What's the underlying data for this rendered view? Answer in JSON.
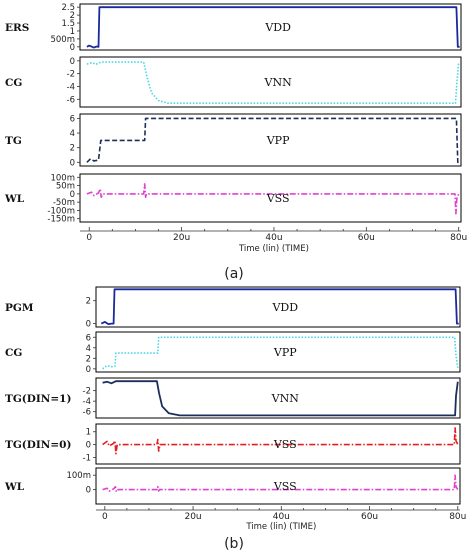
{
  "figure": {
    "captions": [
      "(a)",
      "(b)"
    ],
    "colors": {
      "dark_blue": "#1a2a9c",
      "navy": "#1c2f5c",
      "cyan": "#4fd8e6",
      "magenta": "#e040d0",
      "red": "#e02020",
      "frame": "#000000"
    }
  },
  "chart_data": [
    {
      "type": "line",
      "caption": "(a)",
      "xlabel": "Time (lin) (TIME)",
      "x_ticks": [
        "0",
        "20u",
        "40u",
        "60u",
        "80u"
      ],
      "xlim": [
        -2,
        80.5
      ],
      "panels": [
        {
          "row_label": "ERS",
          "signal_label": "VDD",
          "color": "#1a2a9c",
          "style": "solid",
          "ylim": [
            -0.2,
            2.7
          ],
          "y_ticks": [
            {
              "v": 2.5,
              "t": "2.5"
            },
            {
              "v": 2.0,
              "t": "2"
            },
            {
              "v": 1.5,
              "t": "1.5"
            },
            {
              "v": 1.0,
              "t": "1"
            },
            {
              "v": 0.5,
              "t": "500m"
            },
            {
              "v": 0,
              "t": "0"
            }
          ],
          "points": [
            [
              -0.5,
              0
            ],
            [
              0,
              0.08
            ],
            [
              1,
              -0.05
            ],
            [
              1.6,
              0.02
            ],
            [
              2,
              0
            ],
            [
              2.2,
              2.5
            ],
            [
              79.5,
              2.5
            ],
            [
              79.8,
              0
            ],
            [
              80.2,
              0
            ]
          ]
        },
        {
          "row_label": "CG",
          "signal_label": "VNN",
          "color": "#4fd8e6",
          "style": "dotted",
          "ylim": [
            -7.2,
            0.6
          ],
          "y_ticks": [
            {
              "v": 0,
              "t": "0"
            },
            {
              "v": -2,
              "t": "-2"
            },
            {
              "v": -4,
              "t": "-4"
            },
            {
              "v": -6,
              "t": "-6"
            }
          ],
          "points": [
            [
              -0.5,
              -0.5
            ],
            [
              0.5,
              -0.3
            ],
            [
              1.5,
              -0.5
            ],
            [
              2.5,
              -0.2
            ],
            [
              11.8,
              -0.2
            ],
            [
              12.5,
              -2.5
            ],
            [
              13.5,
              -5.0
            ],
            [
              15,
              -6.2
            ],
            [
              17,
              -6.6
            ],
            [
              79.3,
              -6.6
            ],
            [
              79.6,
              -3.5
            ],
            [
              80,
              -0.2
            ]
          ]
        },
        {
          "row_label": "TG",
          "signal_label": "VPP",
          "color": "#1c2f5c",
          "style": "dashed",
          "ylim": [
            -0.5,
            6.6
          ],
          "y_ticks": [
            {
              "v": 6,
              "t": "6"
            },
            {
              "v": 4,
              "t": "4"
            },
            {
              "v": 2,
              "t": "2"
            },
            {
              "v": 0,
              "t": "0"
            }
          ],
          "points": [
            [
              -0.5,
              0
            ],
            [
              0.3,
              0.5
            ],
            [
              1,
              0.2
            ],
            [
              2,
              0.3
            ],
            [
              2.5,
              3.0
            ],
            [
              12,
              3.0
            ],
            [
              12.2,
              6.0
            ],
            [
              79.5,
              6.0
            ],
            [
              79.8,
              0
            ],
            [
              80.2,
              0
            ]
          ]
        },
        {
          "row_label": "WL",
          "signal_label": "VSS",
          "color": "#e040d0",
          "style": "dashdot",
          "ylim": [
            -0.17,
            0.12
          ],
          "y_ticks": [
            {
              "v": 0.1,
              "t": "100m"
            },
            {
              "v": 0.05,
              "t": "50m"
            },
            {
              "v": 0,
              "t": "0"
            },
            {
              "v": -0.05,
              "t": "-50m"
            },
            {
              "v": -0.1,
              "t": "-100m"
            },
            {
              "v": -0.15,
              "t": "-150m"
            }
          ],
          "points": [
            [
              -0.5,
              0
            ],
            [
              0.5,
              0.01
            ],
            [
              1,
              -0.01
            ],
            [
              2,
              0.005
            ],
            [
              2.4,
              0.03
            ],
            [
              2.6,
              -0.02
            ],
            [
              3,
              0
            ],
            [
              11.8,
              0
            ],
            [
              12,
              0.06
            ],
            [
              12.2,
              -0.02
            ],
            [
              12.4,
              0
            ],
            [
              79.2,
              0
            ],
            [
              79.4,
              -0.12
            ],
            [
              79.6,
              -0.03
            ],
            [
              80,
              0
            ]
          ]
        }
      ]
    },
    {
      "type": "line",
      "caption": "(b)",
      "xlabel": "Time (lin) (TIME)",
      "x_ticks": [
        "0",
        "20u",
        "40u",
        "60u",
        "80u"
      ],
      "xlim": [
        -2,
        80.5
      ],
      "panels": [
        {
          "row_label": "PGM",
          "signal_label": "VDD",
          "color": "#1a2a9c",
          "style": "solid",
          "ylim": [
            -0.3,
            3.2
          ],
          "y_ticks": [
            {
              "v": 2,
              "t": "2"
            },
            {
              "v": 0,
              "t": "0"
            }
          ],
          "points": [
            [
              -0.8,
              0
            ],
            [
              0,
              0.15
            ],
            [
              0.8,
              -0.05
            ],
            [
              1.5,
              0
            ],
            [
              2,
              0
            ],
            [
              2.2,
              3.0
            ],
            [
              79.5,
              3.0
            ],
            [
              79.8,
              0
            ],
            [
              80.2,
              0
            ]
          ]
        },
        {
          "row_label": "CG",
          "signal_label": "VPP",
          "color": "#4fd8e6",
          "style": "dotted",
          "ylim": [
            -0.6,
            7.0
          ],
          "y_ticks": [
            {
              "v": 6,
              "t": "6"
            },
            {
              "v": 4,
              "t": "4"
            },
            {
              "v": 2,
              "t": "2"
            },
            {
              "v": 0,
              "t": "0"
            }
          ],
          "points": [
            [
              -0.5,
              0
            ],
            [
              0.5,
              0.6
            ],
            [
              1.5,
              0.4
            ],
            [
              2.3,
              0.5
            ],
            [
              2.5,
              3.0
            ],
            [
              12,
              3.0
            ],
            [
              12.2,
              6.0
            ],
            [
              79.3,
              6.0
            ],
            [
              79.6,
              2.5
            ],
            [
              80,
              0.2
            ]
          ]
        },
        {
          "row_label": "TG(DIN=1)",
          "signal_label": "VNN",
          "color": "#1c2f5c",
          "style": "solid",
          "ylim": [
            -7.2,
            0.4
          ],
          "y_ticks": [
            {
              "v": -2,
              "t": "-2"
            },
            {
              "v": -4,
              "t": "-4"
            },
            {
              "v": -6,
              "t": "-6"
            }
          ],
          "points": [
            [
              -0.5,
              -0.5
            ],
            [
              0.5,
              -0.3
            ],
            [
              1.5,
              -0.6
            ],
            [
              2.5,
              -0.2
            ],
            [
              11.8,
              -0.2
            ],
            [
              12.3,
              -2.5
            ],
            [
              13,
              -5.0
            ],
            [
              14.5,
              -6.3
            ],
            [
              17,
              -6.7
            ],
            [
              79.4,
              -6.7
            ],
            [
              79.6,
              -3.0
            ],
            [
              80,
              -0.3
            ]
          ]
        },
        {
          "row_label": "TG(DIN=0)",
          "signal_label": "VSS",
          "color": "#e02020",
          "style": "dashdot",
          "ylim": [
            -1.5,
            1.6
          ],
          "y_ticks": [
            {
              "v": 1,
              "t": "1"
            },
            {
              "v": 0,
              "t": "0"
            },
            {
              "v": -1,
              "t": "-1"
            }
          ],
          "points": [
            [
              -0.5,
              0
            ],
            [
              0.5,
              0.25
            ],
            [
              1,
              -0.1
            ],
            [
              2,
              0.1
            ],
            [
              2.3,
              0.3
            ],
            [
              2.5,
              -0.7
            ],
            [
              2.8,
              0
            ],
            [
              11.8,
              0
            ],
            [
              12,
              0.4
            ],
            [
              12.2,
              -0.5
            ],
            [
              12.5,
              0
            ],
            [
              79.2,
              0
            ],
            [
              79.4,
              1.3
            ],
            [
              79.6,
              0.3
            ],
            [
              80,
              0
            ]
          ]
        },
        {
          "row_label": "WL",
          "signal_label": "VSS",
          "color": "#e040d0",
          "style": "dashdot",
          "ylim": [
            -0.1,
            0.15
          ],
          "y_ticks": [
            {
              "v": 0.1,
              "t": "100m"
            },
            {
              "v": 0,
              "t": "0"
            }
          ],
          "points": [
            [
              -0.5,
              0
            ],
            [
              0.5,
              0.01
            ],
            [
              1,
              -0.01
            ],
            [
              2,
              0.005
            ],
            [
              2.4,
              0.02
            ],
            [
              2.6,
              -0.015
            ],
            [
              3,
              0
            ],
            [
              11.8,
              0
            ],
            [
              12,
              0.02
            ],
            [
              12.2,
              -0.01
            ],
            [
              12.4,
              0
            ],
            [
              79.2,
              0
            ],
            [
              79.4,
              0.1
            ],
            [
              79.6,
              0.02
            ],
            [
              80,
              0
            ]
          ]
        }
      ]
    }
  ]
}
